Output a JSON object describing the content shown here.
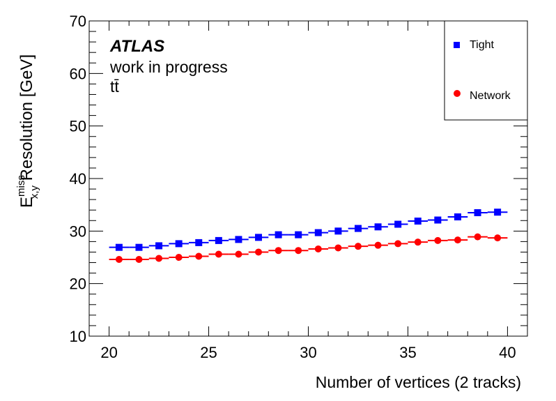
{
  "chart_data": {
    "type": "scatter",
    "title": "",
    "annotations": {
      "experiment": "ATLAS",
      "status": "work in progress",
      "process": "tt̄"
    },
    "xlabel": "Number of vertices (2 tracks)",
    "ylabel": {
      "base": "E",
      "sup": "miss",
      "sub": "x,y",
      "rest": " Resolution [GeV]"
    },
    "xlim": [
      19,
      41
    ],
    "ylim": [
      10,
      70
    ],
    "x_ticks": [
      20,
      25,
      30,
      35,
      40
    ],
    "y_ticks": [
      10,
      20,
      30,
      40,
      50,
      60,
      70
    ],
    "grid": false,
    "legend_position": "top-right",
    "x": [
      20.5,
      21.5,
      22.5,
      23.5,
      24.5,
      25.5,
      26.5,
      27.5,
      28.5,
      29.5,
      30.5,
      31.5,
      32.5,
      33.5,
      34.5,
      35.5,
      36.5,
      37.5,
      38.5,
      39.5
    ],
    "series": [
      {
        "name": "Tight",
        "color": "#0000ff",
        "marker": "square",
        "values": [
          26.9,
          26.9,
          27.2,
          27.6,
          27.8,
          28.2,
          28.4,
          28.8,
          29.3,
          29.3,
          29.7,
          30.0,
          30.5,
          30.8,
          31.3,
          31.9,
          32.1,
          32.7,
          33.5,
          33.6
        ]
      },
      {
        "name": "Network",
        "color": "#ff0000",
        "marker": "circle",
        "values": [
          24.6,
          24.6,
          24.8,
          25.0,
          25.2,
          25.6,
          25.6,
          26.0,
          26.3,
          26.3,
          26.6,
          26.8,
          27.1,
          27.3,
          27.6,
          27.9,
          28.2,
          28.3,
          28.9,
          28.7
        ]
      }
    ]
  }
}
